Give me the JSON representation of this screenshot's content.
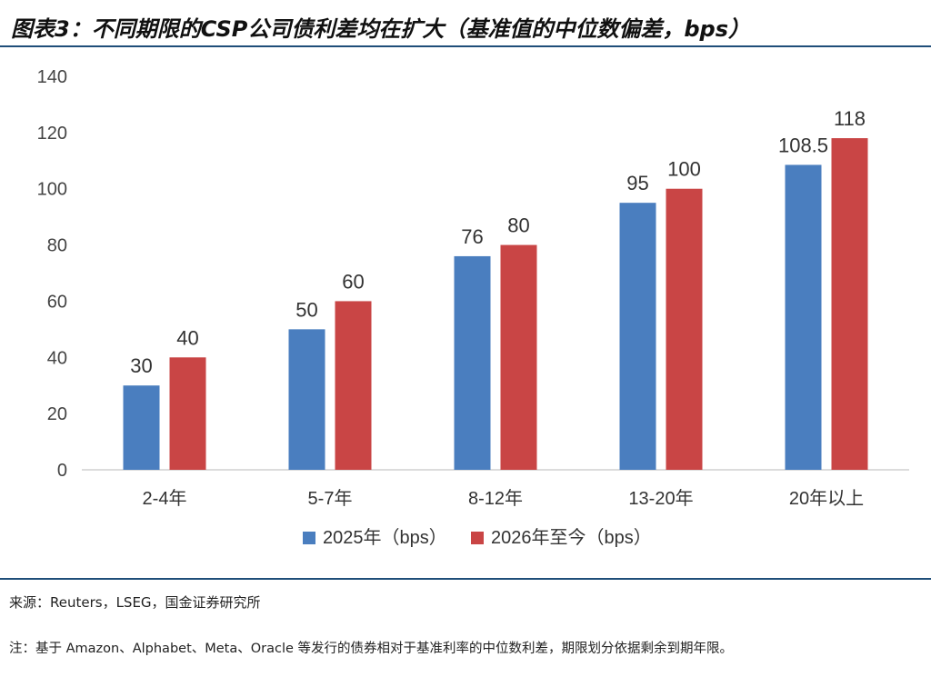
{
  "title": "图表3：不同期限的CSP公司债利差均在扩大（基准值的中位数偏差，bps）",
  "source": "来源：Reuters，LSEG，国金证券研究所",
  "footnote": "注：基于 Amazon、Alphabet、Meta、Oracle 等发行的债券相对于基准利率的中位数利差，期限划分依据剩余到期年限。",
  "colors": {
    "series_2025": "#4a7ebf",
    "series_2026": "#c94545",
    "axis": "#d0d0d0",
    "rule": "#1f4e79"
  },
  "chart_data": {
    "type": "bar",
    "categories": [
      "2-4年",
      "5-7年",
      "8-12年",
      "13-20年",
      "20年以上"
    ],
    "series": [
      {
        "name": "2025年（bps）",
        "values": [
          30,
          50,
          76,
          95,
          108.5
        ]
      },
      {
        "name": "2026年至今（bps）",
        "values": [
          40,
          60,
          80,
          100,
          118
        ]
      }
    ],
    "y_ticks": [
      0,
      20,
      40,
      60,
      80,
      100,
      120,
      140
    ],
    "ylim": [
      0,
      140
    ],
    "grid": false,
    "legend_position": "bottom-center",
    "data_labels": true
  }
}
